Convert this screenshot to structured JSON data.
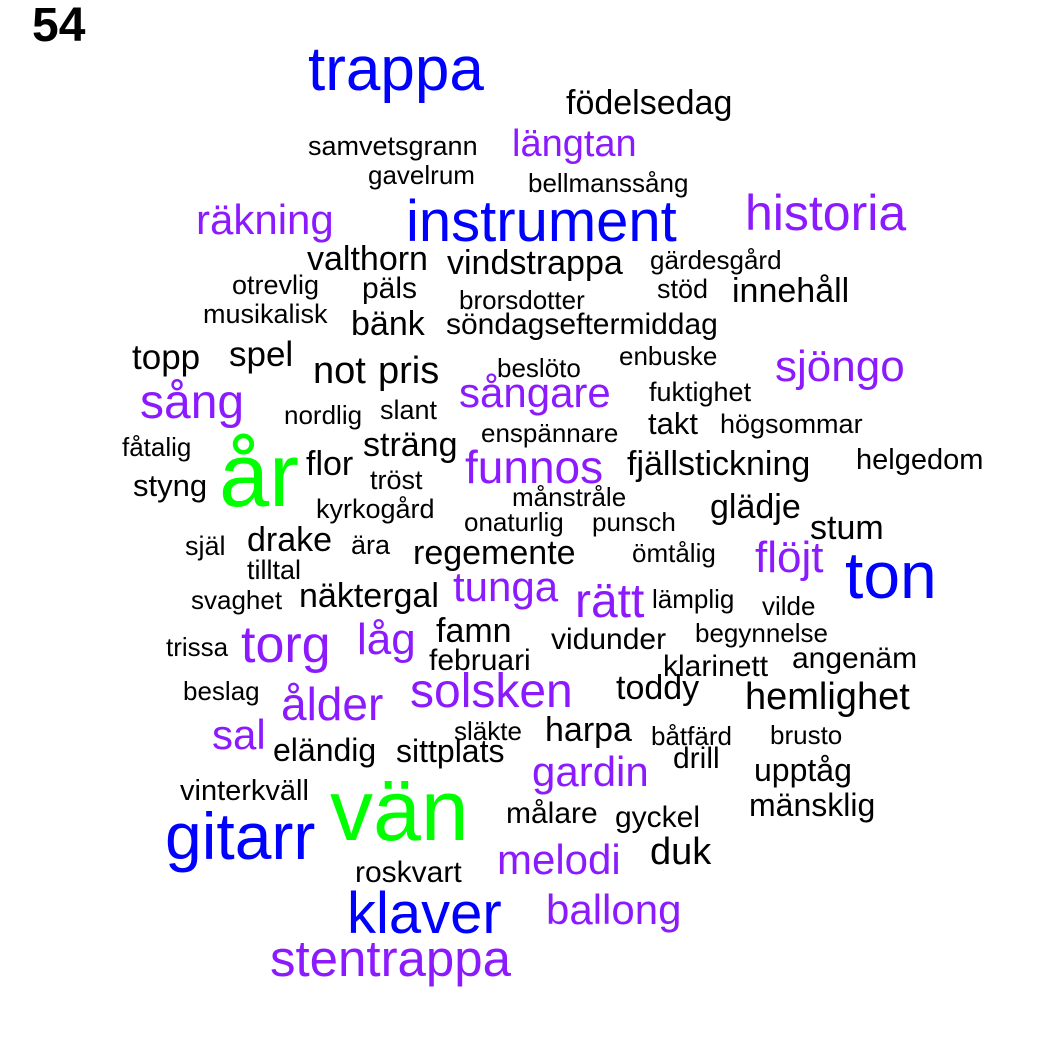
{
  "page_number": "54",
  "colors": {
    "black": "#000000",
    "purple": "#8c1aff",
    "blue": "#0000ff",
    "green": "#00ff00"
  },
  "words": [
    {
      "text": "trappa",
      "color": "blue"
    },
    {
      "text": "födelsedag",
      "color": "black"
    },
    {
      "text": "samvetsgrann",
      "color": "black"
    },
    {
      "text": "längtan",
      "color": "purple"
    },
    {
      "text": "gavelrum",
      "color": "black"
    },
    {
      "text": "bellmanssång",
      "color": "black"
    },
    {
      "text": "räkning",
      "color": "purple"
    },
    {
      "text": "instrument",
      "color": "blue"
    },
    {
      "text": "historia",
      "color": "purple"
    },
    {
      "text": "valthorn",
      "color": "black"
    },
    {
      "text": "vindstrappa",
      "color": "black"
    },
    {
      "text": "gärdesgård",
      "color": "black"
    },
    {
      "text": "otrevlig",
      "color": "black"
    },
    {
      "text": "päls",
      "color": "black"
    },
    {
      "text": "brorsdotter",
      "color": "black"
    },
    {
      "text": "stöd",
      "color": "black"
    },
    {
      "text": "innehåll",
      "color": "black"
    },
    {
      "text": "musikalisk",
      "color": "black"
    },
    {
      "text": "bänk",
      "color": "black"
    },
    {
      "text": "söndagseftermiddag",
      "color": "black"
    },
    {
      "text": "topp",
      "color": "black"
    },
    {
      "text": "spel",
      "color": "black"
    },
    {
      "text": "not",
      "color": "black"
    },
    {
      "text": "pris",
      "color": "black"
    },
    {
      "text": "beslöto",
      "color": "black"
    },
    {
      "text": "enbuske",
      "color": "black"
    },
    {
      "text": "sjöngo",
      "color": "purple"
    },
    {
      "text": "sång",
      "color": "purple"
    },
    {
      "text": "sångare",
      "color": "purple"
    },
    {
      "text": "fuktighet",
      "color": "black"
    },
    {
      "text": "nordlig",
      "color": "black"
    },
    {
      "text": "slant",
      "color": "black"
    },
    {
      "text": "takt",
      "color": "black"
    },
    {
      "text": "högsommar",
      "color": "black"
    },
    {
      "text": "enspännare",
      "color": "black"
    },
    {
      "text": "fåtalig",
      "color": "black"
    },
    {
      "text": "sträng",
      "color": "black"
    },
    {
      "text": "år",
      "color": "green"
    },
    {
      "text": "flor",
      "color": "black"
    },
    {
      "text": "funnos",
      "color": "purple"
    },
    {
      "text": "fjällstickning",
      "color": "black"
    },
    {
      "text": "helgedom",
      "color": "black"
    },
    {
      "text": "tröst",
      "color": "black"
    },
    {
      "text": "styng",
      "color": "black"
    },
    {
      "text": "månstråle",
      "color": "black"
    },
    {
      "text": "kyrkogård",
      "color": "black"
    },
    {
      "text": "glädje",
      "color": "black"
    },
    {
      "text": "onaturlig",
      "color": "black"
    },
    {
      "text": "punsch",
      "color": "black"
    },
    {
      "text": "stum",
      "color": "black"
    },
    {
      "text": "själ",
      "color": "black"
    },
    {
      "text": "drake",
      "color": "black"
    },
    {
      "text": "ära",
      "color": "black"
    },
    {
      "text": "regemente",
      "color": "black"
    },
    {
      "text": "ömtålig",
      "color": "black"
    },
    {
      "text": "flöjt",
      "color": "purple"
    },
    {
      "text": "ton",
      "color": "blue"
    },
    {
      "text": "tilltal",
      "color": "black"
    },
    {
      "text": "tunga",
      "color": "purple"
    },
    {
      "text": "svaghet",
      "color": "black"
    },
    {
      "text": "näktergal",
      "color": "black"
    },
    {
      "text": "rätt",
      "color": "purple"
    },
    {
      "text": "lämplig",
      "color": "black"
    },
    {
      "text": "vilde",
      "color": "black"
    },
    {
      "text": "torg",
      "color": "purple"
    },
    {
      "text": "låg",
      "color": "purple"
    },
    {
      "text": "famn",
      "color": "black"
    },
    {
      "text": "begynnelse",
      "color": "black"
    },
    {
      "text": "trissa",
      "color": "black"
    },
    {
      "text": "vidunder",
      "color": "black"
    },
    {
      "text": "februari",
      "color": "black"
    },
    {
      "text": "klarinett",
      "color": "black"
    },
    {
      "text": "angenäm",
      "color": "black"
    },
    {
      "text": "beslag",
      "color": "black"
    },
    {
      "text": "toddy",
      "color": "black"
    },
    {
      "text": "solsken",
      "color": "purple"
    },
    {
      "text": "ålder",
      "color": "purple"
    },
    {
      "text": "hemlighet",
      "color": "black"
    },
    {
      "text": "sal",
      "color": "purple"
    },
    {
      "text": "släkte",
      "color": "black"
    },
    {
      "text": "harpa",
      "color": "black"
    },
    {
      "text": "båtfärd",
      "color": "black"
    },
    {
      "text": "brusto",
      "color": "black"
    },
    {
      "text": "eländig",
      "color": "black"
    },
    {
      "text": "sittplats",
      "color": "black"
    },
    {
      "text": "drill",
      "color": "black"
    },
    {
      "text": "gardin",
      "color": "purple"
    },
    {
      "text": "upptåg",
      "color": "black"
    },
    {
      "text": "vinterkväll",
      "color": "black"
    },
    {
      "text": "vän",
      "color": "green"
    },
    {
      "text": "mänsklig",
      "color": "black"
    },
    {
      "text": "målare",
      "color": "black"
    },
    {
      "text": "gyckel",
      "color": "black"
    },
    {
      "text": "gitarr",
      "color": "blue"
    },
    {
      "text": "duk",
      "color": "black"
    },
    {
      "text": "melodi",
      "color": "purple"
    },
    {
      "text": "roskvart",
      "color": "black"
    },
    {
      "text": "klaver",
      "color": "blue"
    },
    {
      "text": "ballong",
      "color": "purple"
    },
    {
      "text": "stentrappa",
      "color": "purple"
    }
  ]
}
